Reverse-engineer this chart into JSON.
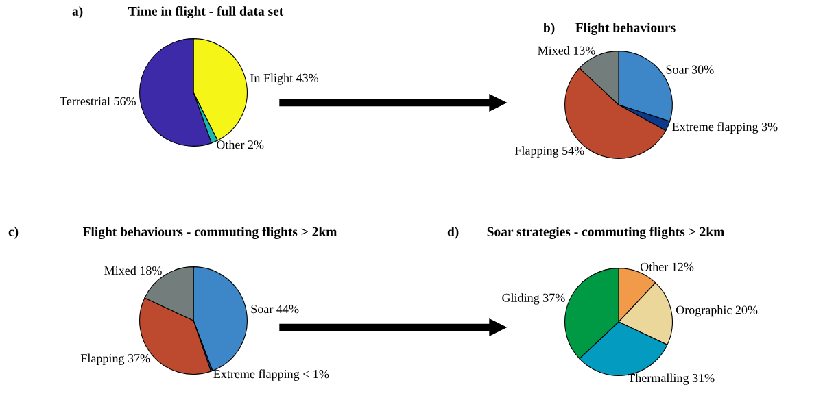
{
  "chart_data": [
    {
      "type": "pie",
      "title": "Time in flight - full data set",
      "annotations": [
        "a)"
      ],
      "categories": [
        "In Flight",
        "Other",
        "Terrestrial"
      ],
      "values": [
        43,
        2,
        56
      ],
      "value_labels": [
        "43%",
        "2%",
        "56%"
      ],
      "colors": [
        "#f5f518",
        "#1bb8b0",
        "#3d2aa8"
      ]
    },
    {
      "type": "pie",
      "title": "Flight behaviours",
      "annotations": [
        "b)"
      ],
      "categories": [
        "Soar",
        "Extreme flapping",
        "Flapping",
        "Mixed"
      ],
      "values": [
        30,
        3,
        54,
        13
      ],
      "value_labels": [
        "30%",
        "3%",
        "54%",
        "13%"
      ],
      "colors": [
        "#3d87c9",
        "#0b3a8a",
        "#bd4a2e",
        "#737e7c"
      ]
    },
    {
      "type": "pie",
      "title": "Flight behaviours - commuting flights > 2km",
      "annotations": [
        "c)"
      ],
      "categories": [
        "Soar",
        "Extreme flapping",
        "Flapping",
        "Mixed"
      ],
      "values": [
        44,
        0.5,
        37,
        18
      ],
      "value_labels": [
        "44%",
        "< 1%",
        "37%",
        "18%"
      ],
      "colors": [
        "#3d87c9",
        "#0b3a8a",
        "#bd4a2e",
        "#737e7c"
      ]
    },
    {
      "type": "pie",
      "title": "Soar strategies - commuting flights > 2km",
      "annotations": [
        "d)"
      ],
      "categories": [
        "Other",
        "Orographic",
        "Thermalling",
        "Gliding"
      ],
      "values": [
        12,
        20,
        31,
        37
      ],
      "value_labels": [
        "12%",
        "20%",
        "31%",
        "37%"
      ],
      "colors": [
        "#f09a4a",
        "#ecd79b",
        "#039bbf",
        "#009a44"
      ]
    }
  ]
}
